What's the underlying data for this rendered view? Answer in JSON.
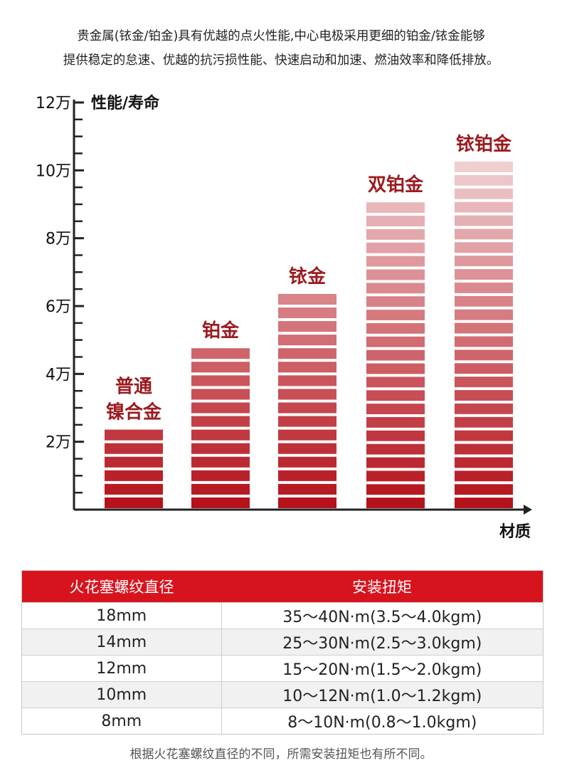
{
  "intro": {
    "line1": "贵金属(铱金/铂金)具有优越的点火性能,中心电极采用更细的铂金/铱金能够",
    "line2": "提供稳定的怠速、优越的抗污损性能、快速启动和加速、燃油效率和降低排放。"
  },
  "chart_data": {
    "type": "bar",
    "ylabel": "性能/寿命",
    "xlabel": "材质",
    "categories": [
      "普通镍合金",
      "铂金",
      "铱金",
      "双铂金",
      "铱铂金"
    ],
    "category_lines": [
      [
        "普通",
        "镍合金"
      ],
      [
        "铂金"
      ],
      [
        "铱金"
      ],
      [
        "双铂金"
      ],
      [
        "铱铂金"
      ]
    ],
    "values": [
      24000,
      48000,
      64000,
      91000,
      103000
    ],
    "ylim": [
      0,
      120000
    ],
    "ytick_values": [
      20000,
      40000,
      60000,
      80000,
      100000,
      120000
    ],
    "ytick_labels": [
      "2万",
      "4万",
      "6万",
      "8万",
      "10万",
      "12万"
    ],
    "bar_color_bottom": "#b5121b",
    "bar_color_top": "#f6e6e8",
    "label_color": "#9b1b1f"
  },
  "torque_table": {
    "headers": [
      "火花塞螺纹直径",
      "安装扭矩"
    ],
    "rows": [
      [
        "18mm",
        "35～40N·m(3.5～4.0kgm)"
      ],
      [
        "14mm",
        "25～30N·m(2.5～3.0kgm)"
      ],
      [
        "12mm",
        "15～20N·m(1.5～2.0kgm)"
      ],
      [
        "10mm",
        "10～12N·m(1.0～1.2kgm)"
      ],
      [
        "8mm",
        "8～10N·m(0.8～1.0kgm)"
      ]
    ],
    "header_color": "#d7141e"
  },
  "note": "根据火花塞螺纹直径的不同，所需安装扭矩也有所不同。"
}
